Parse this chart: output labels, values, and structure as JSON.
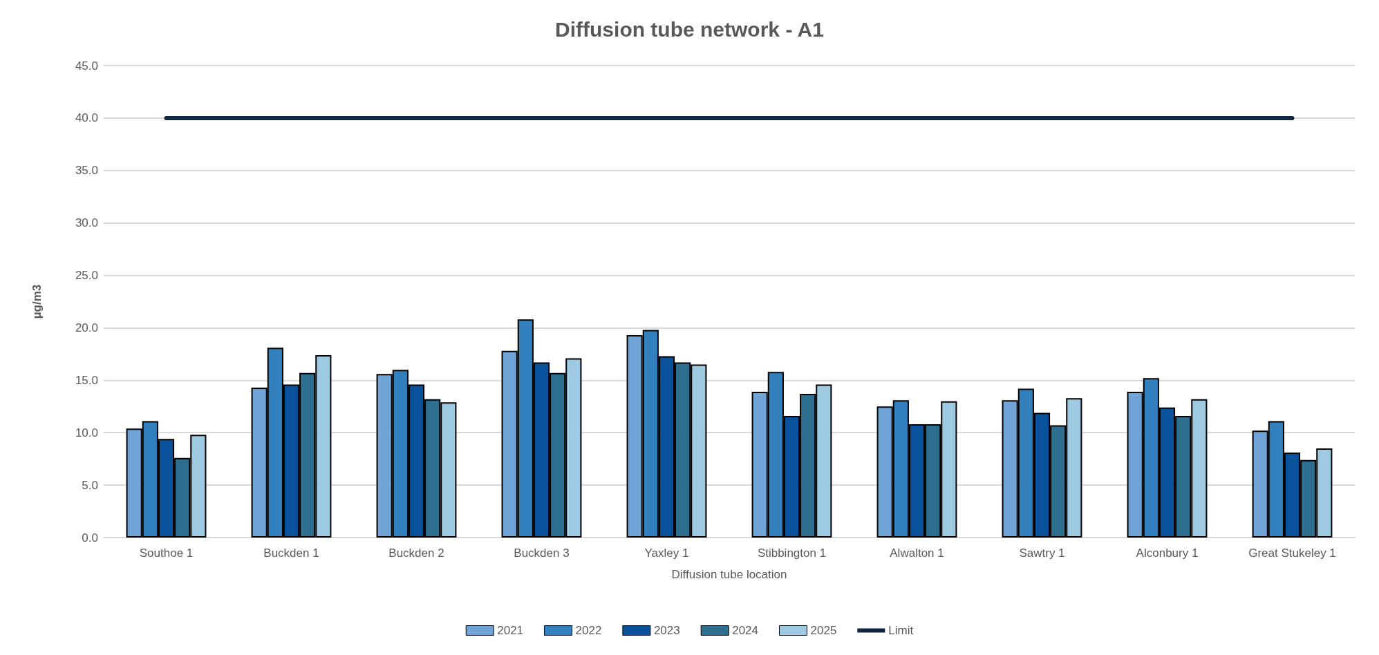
{
  "chart_data": {
    "type": "bar",
    "title": "Diffusion tube network - A1",
    "xlabel": "Diffusion tube location",
    "ylabel": "µg/m3",
    "categories": [
      "Southoe 1",
      "Buckden 1",
      "Buckden 2",
      "Buckden 3",
      "Yaxley 1",
      "Stibbington 1",
      "Alwalton 1",
      "Sawtry 1",
      "Alconbury 1",
      "Great Stukeley 1"
    ],
    "series": [
      {
        "name": "2021",
        "color": "#70a4d6",
        "values": [
          10.4,
          14.3,
          15.6,
          17.8,
          19.3,
          13.9,
          12.5,
          13.1,
          13.9,
          10.2
        ]
      },
      {
        "name": "2022",
        "color": "#3380bf",
        "values": [
          11.1,
          18.1,
          16.0,
          20.8,
          19.8,
          15.8,
          13.1,
          14.2,
          15.2,
          11.1
        ]
      },
      {
        "name": "2023",
        "color": "#0a519c",
        "values": [
          9.4,
          14.6,
          14.6,
          16.7,
          17.3,
          11.6,
          10.8,
          11.9,
          12.4,
          8.1
        ]
      },
      {
        "name": "2024",
        "color": "#2e6f90",
        "values": [
          7.6,
          15.7,
          13.2,
          15.7,
          16.7,
          13.7,
          10.8,
          10.7,
          11.6,
          7.4
        ]
      },
      {
        "name": "2025",
        "color": "#9ecae1",
        "values": [
          9.8,
          17.4,
          12.9,
          17.1,
          16.5,
          14.6,
          13.0,
          13.3,
          13.2,
          8.5
        ]
      },
      {
        "name": "Limit",
        "type": "line",
        "color": "#0f2540",
        "values": [
          40,
          40,
          40,
          40,
          40,
          40,
          40,
          40,
          40,
          40
        ]
      }
    ],
    "ylim": [
      0,
      45
    ],
    "yticks": [
      {
        "value": 0,
        "label": "0.0"
      },
      {
        "value": 5,
        "label": "5.0"
      },
      {
        "value": 10,
        "label": "10.0"
      },
      {
        "value": 15,
        "label": "15.0"
      },
      {
        "value": 20,
        "label": "20.0"
      },
      {
        "value": 25,
        "label": "25.0"
      },
      {
        "value": 30,
        "label": "30.0"
      },
      {
        "value": 35,
        "label": "35.0"
      },
      {
        "value": 40,
        "label": "40.0"
      },
      {
        "value": 45,
        "label": "45.0"
      }
    ],
    "grid": "y",
    "legend": "bottom",
    "marker": "none"
  }
}
